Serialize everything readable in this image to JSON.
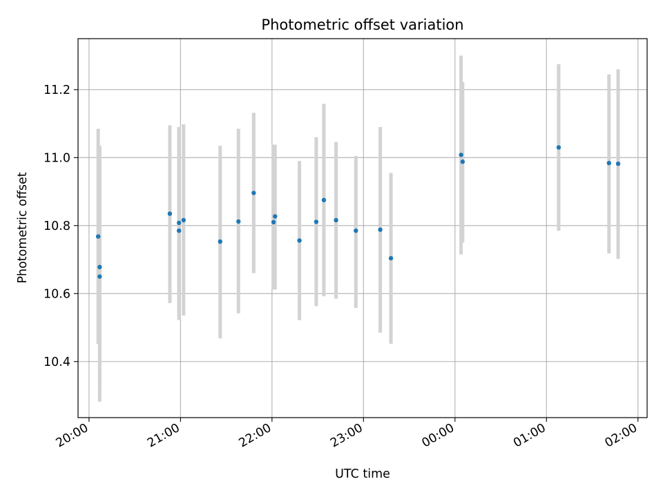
{
  "chart_data": {
    "type": "scatter",
    "title": "Photometric offset variation",
    "xlabel": "UTC time",
    "ylabel": "Photometric offset",
    "x_ticks": [
      "20:00",
      "21:00",
      "22:00",
      "23:00",
      "00:00",
      "01:00",
      "02:00"
    ],
    "y_ticks": [
      "10.4",
      "10.6",
      "10.8",
      "11.0",
      "11.2"
    ],
    "x_range_hours": [
      19.88,
      26.1
    ],
    "y_range": [
      10.235,
      11.35
    ],
    "grid": true,
    "colors": {
      "point": "#1f77b4",
      "errorbar": "#d3d3d3",
      "grid": "#b0b0b0"
    },
    "series": [
      {
        "x": [
          "20:06",
          "20:07",
          "20:07",
          "20:53",
          "20:59",
          "20:59",
          "21:02",
          "21:26",
          "21:38",
          "21:48",
          "22:01",
          "22:02",
          "22:18",
          "22:29",
          "22:34",
          "22:42",
          "22:55",
          "23:11",
          "23:18",
          "00:04",
          "00:05",
          "01:08",
          "01:41",
          "01:47"
        ],
        "y": [
          10.768,
          10.65,
          10.678,
          10.835,
          10.808,
          10.785,
          10.816,
          10.753,
          10.812,
          10.896,
          10.81,
          10.827,
          10.756,
          10.811,
          10.875,
          10.816,
          10.785,
          10.788,
          10.704,
          11.008,
          10.988,
          11.03,
          10.984,
          10.982
        ],
        "yerr_low": [
          10.452,
          10.282,
          10.325,
          10.572,
          10.522,
          10.525,
          10.535,
          10.468,
          10.542,
          10.66,
          10.612,
          10.612,
          10.522,
          10.563,
          10.592,
          10.585,
          10.558,
          10.485,
          10.452,
          10.715,
          10.75,
          10.785,
          10.718,
          10.702
        ],
        "yerr_high": [
          11.085,
          11.03,
          11.035,
          11.095,
          11.09,
          11.09,
          11.098,
          11.035,
          11.085,
          11.132,
          11.038,
          11.038,
          10.99,
          11.06,
          11.158,
          11.046,
          11.005,
          11.09,
          10.955,
          11.3,
          11.222,
          11.275,
          11.245,
          11.26
        ]
      }
    ]
  }
}
